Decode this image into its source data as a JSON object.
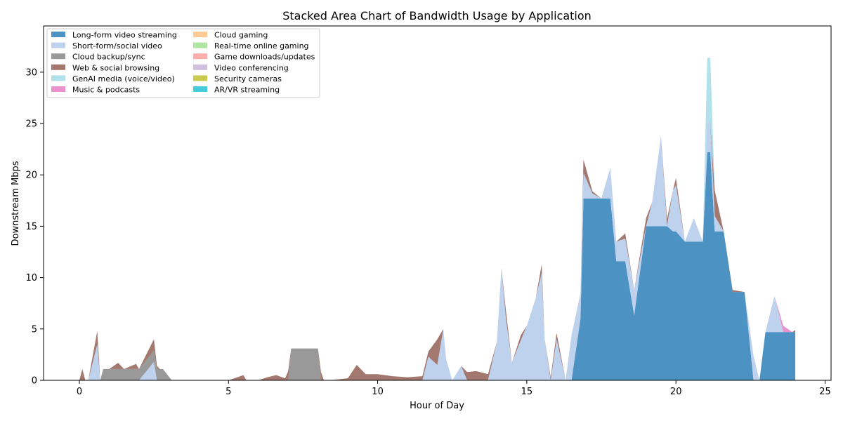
{
  "chart_data": {
    "type": "area",
    "stacked": true,
    "title": "Stacked Area Chart of Bandwidth Usage by Application",
    "xlabel": "Hour of Day",
    "ylabel": "Downstream Mbps",
    "xlim": [
      -1.2,
      25.2
    ],
    "ylim": [
      0,
      34.5
    ],
    "xticks": [
      0,
      5,
      10,
      15,
      20,
      25
    ],
    "yticks": [
      0,
      5,
      10,
      15,
      20,
      25,
      30
    ],
    "grid": false,
    "legend_position": "top-left",
    "x": [
      0.0,
      0.1,
      0.2,
      0.3,
      0.6,
      0.7,
      0.8,
      1.0,
      1.3,
      1.5,
      1.9,
      2.0,
      2.5,
      2.6,
      2.7,
      2.8,
      3.1,
      3.5,
      4.0,
      5.0,
      5.5,
      5.6,
      6.0,
      6.3,
      6.6,
      6.9,
      7.0,
      7.1,
      8.0,
      8.1,
      8.2,
      8.4,
      9.0,
      9.3,
      9.6,
      10.0,
      10.5,
      11.0,
      11.5,
      11.7,
      12.0,
      12.2,
      12.3,
      12.5,
      12.8,
      13.0,
      13.3,
      13.7,
      14.0,
      14.15,
      14.3,
      14.5,
      14.8,
      15.0,
      15.3,
      15.5,
      15.6,
      15.8,
      16.0,
      16.3,
      16.5,
      16.8,
      16.9,
      17.2,
      17.5,
      17.8,
      18.0,
      18.3,
      18.6,
      19.0,
      19.2,
      19.5,
      19.7,
      19.9,
      20.0,
      20.3,
      20.6,
      20.9,
      21.05,
      21.15,
      21.3,
      21.6,
      21.9,
      22.3,
      22.6,
      22.8,
      23.0,
      23.3,
      23.6,
      23.9,
      24.0
    ],
    "series": [
      {
        "name": "Long-form video streaming",
        "color": "#1f77b4",
        "values": [
          0,
          0,
          0,
          0,
          0,
          0,
          0,
          0,
          0,
          0,
          0,
          0,
          0,
          0,
          0,
          0,
          0,
          0,
          0,
          0,
          0,
          0,
          0,
          0,
          0,
          0,
          0,
          0,
          0,
          0,
          0,
          0,
          0,
          0,
          0,
          0,
          0,
          0,
          0,
          0,
          0,
          0,
          0,
          0,
          0,
          0,
          0,
          0,
          0,
          0,
          0,
          0,
          0,
          0,
          0,
          0,
          0,
          0,
          0,
          0,
          0,
          6.0,
          17.7,
          17.7,
          17.7,
          17.7,
          11.6,
          11.6,
          6.3,
          15.0,
          15.0,
          15.0,
          15.0,
          14.5,
          14.5,
          13.5,
          13.5,
          13.5,
          22.2,
          22.2,
          14.5,
          14.5,
          8.6,
          8.6,
          0,
          0,
          4.7,
          4.7,
          4.7,
          4.7,
          4.7
        ]
      },
      {
        "name": "Short-form/social video",
        "color": "#aec7e8",
        "values": [
          0,
          0,
          0,
          0,
          3.5,
          0,
          0,
          0,
          0,
          0,
          0,
          0,
          1.8,
          0,
          0,
          0,
          0,
          0,
          0,
          0,
          0,
          0,
          0,
          0,
          0,
          0,
          0,
          0,
          0,
          0,
          0,
          0,
          0,
          0,
          0,
          0,
          0,
          0,
          0,
          2.3,
          1.5,
          5.0,
          2.0,
          0,
          1.4,
          0,
          0,
          0,
          3.8,
          11.0,
          6.0,
          1.7,
          3.9,
          5.3,
          8.0,
          10.5,
          4.0,
          0,
          4.0,
          0,
          4.4,
          2.5,
          2.5,
          0.5,
          0,
          3.0,
          1.9,
          2.2,
          2.5,
          0,
          2.3,
          8.8,
          0,
          4.0,
          4.5,
          0,
          2.3,
          0,
          3.0,
          3.0,
          1.5,
          0,
          0,
          0,
          2.4,
          0,
          0,
          3.5,
          0,
          0,
          0
        ]
      },
      {
        "name": "Cloud backup/sync",
        "color": "#7f7f7f",
        "values": [
          0,
          0,
          0,
          0,
          0,
          0,
          1.1,
          1.1,
          1.1,
          1.1,
          1.1,
          1.1,
          1.1,
          1.1,
          1.1,
          1.1,
          0,
          0,
          0,
          0,
          0,
          0,
          0,
          0,
          0,
          0,
          0,
          3.1,
          3.1,
          0,
          0,
          0,
          0,
          0,
          0,
          0,
          0,
          0,
          0,
          0,
          0,
          0,
          0,
          0,
          0,
          0,
          0,
          0,
          0,
          0,
          0,
          0,
          0,
          0,
          0,
          0,
          0,
          0,
          0,
          0,
          0,
          0,
          0,
          0,
          0,
          0,
          0,
          0,
          0,
          0,
          0,
          0,
          0,
          0,
          0,
          0,
          0,
          0,
          0,
          0,
          0,
          0,
          0,
          0,
          0,
          0,
          0,
          0,
          0,
          0,
          0
        ]
      },
      {
        "name": "Web & social browsing",
        "color": "#8c564b",
        "values": [
          0,
          1.1,
          0,
          0,
          1.3,
          0,
          0,
          0,
          0.6,
          0,
          0.5,
          0,
          1.1,
          0.3,
          0,
          0,
          0,
          0,
          0,
          0,
          0.5,
          0,
          0,
          0.3,
          0.5,
          0.2,
          0.9,
          0,
          0,
          0.8,
          0,
          0,
          0.2,
          1.5,
          0.6,
          0.6,
          0.4,
          0.3,
          0.4,
          0.5,
          2.5,
          0,
          0,
          0,
          0,
          0.8,
          0.9,
          0.6,
          0,
          0,
          0.8,
          0,
          0.5,
          0,
          0,
          0.8,
          0,
          0.3,
          0.6,
          0,
          0,
          0,
          1.3,
          0.2,
          0,
          0,
          0,
          0.5,
          0,
          0.8,
          0,
          0,
          0.7,
          0,
          0.7,
          0,
          0,
          0,
          0,
          0,
          2.5,
          0,
          0.2,
          0,
          0,
          0,
          0,
          0,
          0,
          0,
          0.2
        ]
      },
      {
        "name": "GenAI media (voice/video)",
        "color": "#9edae5",
        "values": [
          0,
          0,
          0,
          0,
          0,
          0,
          0,
          0,
          0,
          0,
          0,
          0,
          0,
          0,
          0,
          0,
          0,
          0,
          0,
          0,
          0,
          0,
          0,
          0,
          0,
          0,
          0,
          0,
          0,
          0,
          0,
          0,
          0,
          0,
          0,
          0,
          0,
          0,
          0,
          0,
          0,
          0,
          0,
          0,
          0,
          0,
          0,
          0,
          0,
          0,
          0,
          0,
          0,
          0,
          0,
          0,
          0,
          0,
          0,
          0,
          0,
          0,
          0,
          0,
          0,
          0,
          0,
          0,
          0,
          0,
          0,
          0,
          0,
          0,
          0,
          0,
          0,
          0,
          6.2,
          6.2,
          0,
          0,
          0,
          0,
          0,
          0,
          0,
          0,
          0,
          0,
          0
        ]
      },
      {
        "name": "Music & podcasts",
        "color": "#e377c2",
        "values": [
          0,
          0,
          0,
          0,
          0,
          0,
          0,
          0,
          0,
          0,
          0,
          0,
          0,
          0,
          0,
          0,
          0,
          0,
          0,
          0,
          0,
          0,
          0,
          0,
          0,
          0,
          0,
          0,
          0,
          0,
          0,
          0,
          0,
          0,
          0,
          0,
          0,
          0,
          0,
          0,
          0,
          0,
          0,
          0,
          0,
          0,
          0,
          0,
          0,
          0,
          0,
          0,
          0,
          0,
          0,
          0,
          0,
          0,
          0,
          0,
          0,
          0,
          0,
          0,
          0,
          0,
          0,
          0,
          0,
          0,
          0,
          0,
          0,
          0,
          0,
          0,
          0,
          0,
          0,
          0,
          0,
          0,
          0,
          0,
          0,
          0,
          0,
          0,
          0.6,
          0,
          0
        ]
      },
      {
        "name": "Cloud gaming",
        "color": "#ffbb78",
        "values": [
          0,
          0,
          0,
          0,
          0,
          0,
          0,
          0,
          0,
          0,
          0,
          0,
          0,
          0,
          0,
          0,
          0,
          0,
          0,
          0,
          0,
          0,
          0,
          0,
          0,
          0,
          0,
          0,
          0,
          0,
          0,
          0,
          0,
          0,
          0,
          0,
          0,
          0,
          0,
          0,
          0,
          0,
          0,
          0,
          0,
          0,
          0,
          0,
          0,
          0,
          0,
          0,
          0,
          0,
          0,
          0,
          0,
          0,
          0,
          0,
          0,
          0,
          0,
          0,
          0,
          0,
          0,
          0,
          0,
          0,
          0,
          0,
          0,
          0,
          0,
          0,
          0,
          0,
          0,
          0,
          0,
          0,
          0,
          0,
          0,
          0,
          0,
          0,
          0,
          0,
          0
        ]
      },
      {
        "name": "Real-time online gaming",
        "color": "#98df8a",
        "values": [
          0,
          0,
          0,
          0,
          0,
          0,
          0,
          0,
          0,
          0,
          0,
          0,
          0,
          0,
          0,
          0,
          0,
          0,
          0,
          0,
          0,
          0,
          0,
          0,
          0,
          0,
          0,
          0,
          0,
          0,
          0,
          0,
          0,
          0,
          0,
          0,
          0,
          0,
          0,
          0,
          0,
          0,
          0,
          0,
          0,
          0,
          0,
          0,
          0,
          0,
          0,
          0,
          0,
          0,
          0,
          0,
          0,
          0,
          0,
          0,
          0,
          0,
          0,
          0,
          0,
          0,
          0,
          0,
          0,
          0,
          0,
          0,
          0,
          0,
          0,
          0,
          0,
          0,
          0,
          0,
          0,
          0,
          0,
          0,
          0,
          0,
          0,
          0,
          0,
          0,
          0
        ]
      },
      {
        "name": "Game downloads/updates",
        "color": "#ff9896",
        "values": [
          0,
          0,
          0,
          0,
          0,
          0,
          0,
          0,
          0,
          0,
          0,
          0,
          0,
          0,
          0,
          0,
          0,
          0,
          0,
          0,
          0,
          0,
          0,
          0,
          0,
          0,
          0,
          0,
          0,
          0,
          0,
          0,
          0,
          0,
          0,
          0,
          0,
          0,
          0,
          0,
          0,
          0,
          0,
          0,
          0,
          0,
          0,
          0,
          0,
          0,
          0,
          0,
          0,
          0,
          0,
          0,
          0,
          0,
          0,
          0,
          0,
          0,
          0,
          0,
          0,
          0,
          0,
          0,
          0,
          0,
          0,
          0,
          0,
          0,
          0,
          0,
          0,
          0,
          0,
          0,
          0,
          0,
          0,
          0,
          0,
          0,
          0,
          0,
          0,
          0,
          0
        ]
      },
      {
        "name": "Video conferencing",
        "color": "#c5b0d5",
        "values": [
          0,
          0,
          0,
          0,
          0,
          0,
          0,
          0,
          0,
          0,
          0,
          0,
          0,
          0,
          0,
          0,
          0,
          0,
          0,
          0,
          0,
          0,
          0,
          0,
          0,
          0,
          0,
          0,
          0,
          0,
          0,
          0,
          0,
          0,
          0,
          0,
          0,
          0,
          0,
          0,
          0,
          0,
          0,
          0,
          0,
          0,
          0,
          0,
          0,
          0,
          0,
          0,
          0,
          0,
          0,
          0,
          0,
          0,
          0,
          0,
          0,
          0,
          0,
          0,
          0,
          0,
          0,
          0,
          0,
          0,
          0,
          0,
          0,
          0,
          0,
          0,
          0,
          0,
          0,
          0,
          0,
          0,
          0,
          0,
          0,
          0,
          0,
          0,
          0,
          0,
          0
        ]
      },
      {
        "name": "Security cameras",
        "color": "#bcbd22",
        "values": [
          0,
          0,
          0,
          0,
          0,
          0,
          0,
          0,
          0,
          0,
          0,
          0,
          0,
          0,
          0,
          0,
          0,
          0,
          0,
          0,
          0,
          0,
          0,
          0,
          0,
          0,
          0,
          0,
          0,
          0,
          0,
          0,
          0,
          0,
          0,
          0,
          0,
          0,
          0,
          0,
          0,
          0,
          0,
          0,
          0,
          0,
          0,
          0,
          0,
          0,
          0,
          0,
          0,
          0,
          0,
          0,
          0,
          0,
          0,
          0,
          0,
          0,
          0,
          0,
          0,
          0,
          0,
          0,
          0,
          0,
          0,
          0,
          0,
          0,
          0,
          0,
          0,
          0,
          0,
          0,
          0,
          0,
          0,
          0,
          0,
          0,
          0,
          0,
          0,
          0,
          0
        ]
      },
      {
        "name": "AR/VR streaming",
        "color": "#17becf",
        "values": [
          0,
          0,
          0,
          0,
          0,
          0,
          0,
          0,
          0,
          0,
          0,
          0,
          0,
          0,
          0,
          0,
          0,
          0,
          0,
          0,
          0,
          0,
          0,
          0,
          0,
          0,
          0,
          0,
          0,
          0,
          0,
          0,
          0,
          0,
          0,
          0,
          0,
          0,
          0,
          0,
          0,
          0,
          0,
          0,
          0,
          0,
          0,
          0,
          0,
          0,
          0,
          0,
          0,
          0,
          0,
          0,
          0,
          0,
          0,
          0,
          0,
          0,
          0,
          0,
          0,
          0,
          0,
          0,
          0,
          0,
          0,
          0,
          0,
          0,
          0,
          0,
          0,
          0,
          0,
          0,
          0,
          0,
          0,
          0,
          0,
          0,
          0,
          0,
          0,
          0,
          0
        ]
      }
    ]
  }
}
